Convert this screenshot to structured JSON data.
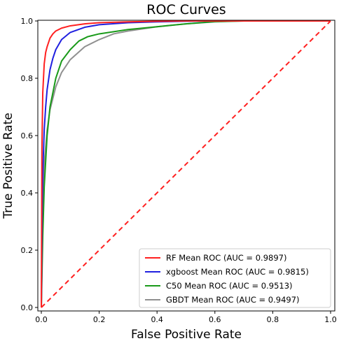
{
  "chart_data": {
    "type": "line",
    "title": "ROC Curves",
    "xlabel": "False Positive Rate",
    "ylabel": "True Positive Rate",
    "xlim": [
      0,
      1
    ],
    "ylim": [
      0,
      1
    ],
    "xticks": [
      "0.0",
      "0.2",
      "0.4",
      "0.6",
      "0.8",
      "1.0"
    ],
    "yticks": [
      "0.0",
      "0.2",
      "0.4",
      "0.6",
      "0.8",
      "1.0"
    ],
    "grid": false,
    "legend_position": "lower-right",
    "series": [
      {
        "name": "RF Mean ROC (AUC = 0.9897)",
        "color": "#ff2020",
        "x": [
          0,
          0.002,
          0.005,
          0.01,
          0.015,
          0.02,
          0.03,
          0.04,
          0.05,
          0.07,
          0.1,
          0.15,
          0.2,
          0.3,
          0.4,
          0.5,
          0.6,
          0.8,
          1.0
        ],
        "y": [
          0,
          0.55,
          0.75,
          0.85,
          0.89,
          0.91,
          0.94,
          0.955,
          0.965,
          0.975,
          0.983,
          0.99,
          0.994,
          0.997,
          0.999,
          1.0,
          1.0,
          1.0,
          1.0
        ]
      },
      {
        "name": "xgboost Mean ROC (AUC = 0.9815)",
        "color": "#2020e0",
        "x": [
          0,
          0.003,
          0.006,
          0.01,
          0.015,
          0.02,
          0.03,
          0.04,
          0.05,
          0.07,
          0.1,
          0.15,
          0.2,
          0.3,
          0.4,
          0.5,
          0.6,
          0.8,
          1.0
        ],
        "y": [
          0,
          0.35,
          0.5,
          0.62,
          0.7,
          0.76,
          0.83,
          0.87,
          0.9,
          0.935,
          0.96,
          0.978,
          0.987,
          0.994,
          0.997,
          0.999,
          1.0,
          1.0,
          1.0
        ]
      },
      {
        "name": "C50 Mean ROC (AUC = 0.9513)",
        "color": "#1a9a1a",
        "x": [
          0,
          0.005,
          0.01,
          0.02,
          0.03,
          0.05,
          0.07,
          0.1,
          0.13,
          0.16,
          0.2,
          0.3,
          0.4,
          0.5,
          0.6,
          0.7,
          0.8,
          1.0
        ],
        "y": [
          0,
          0.25,
          0.42,
          0.6,
          0.7,
          0.8,
          0.86,
          0.9,
          0.93,
          0.945,
          0.955,
          0.97,
          0.98,
          0.99,
          0.998,
          1.0,
          1.0,
          1.0
        ]
      },
      {
        "name": "GBDT Mean ROC (AUC = 0.9497)",
        "color": "#909090",
        "x": [
          0,
          0.005,
          0.01,
          0.02,
          0.03,
          0.05,
          0.07,
          0.1,
          0.15,
          0.2,
          0.25,
          0.3,
          0.4,
          0.5,
          0.6,
          0.7,
          0.8,
          1.0
        ],
        "y": [
          0,
          0.35,
          0.5,
          0.62,
          0.69,
          0.77,
          0.82,
          0.865,
          0.91,
          0.935,
          0.955,
          0.965,
          0.98,
          0.99,
          0.997,
          1.0,
          1.0,
          1.0
        ]
      },
      {
        "name": "",
        "color": "#ff2020",
        "dashed": true,
        "x": [
          0,
          1
        ],
        "y": [
          0,
          1
        ]
      }
    ]
  }
}
